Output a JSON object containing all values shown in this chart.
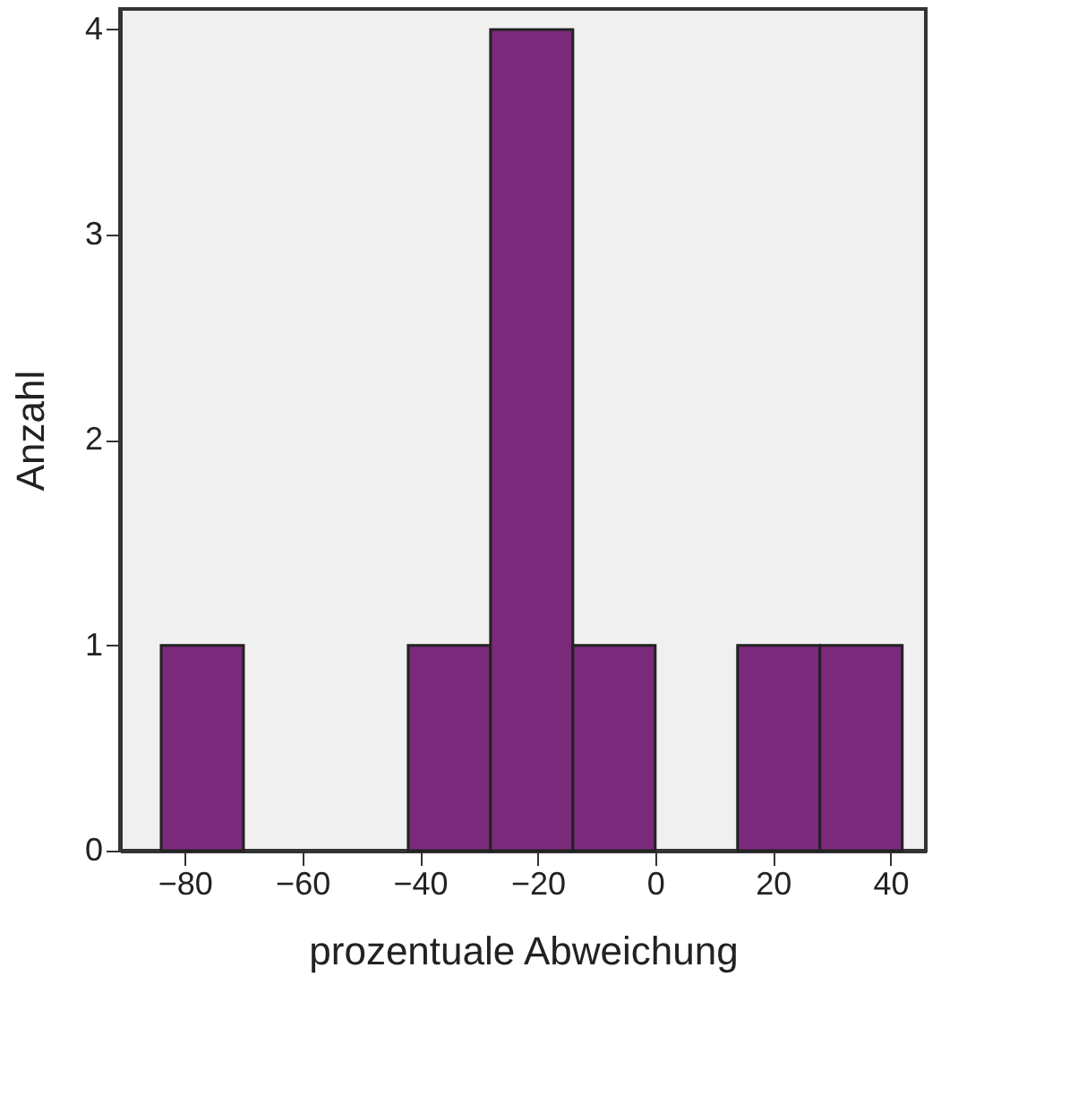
{
  "chart_data": {
    "type": "histogram",
    "xlabel": "prozentuale Abweichung",
    "ylabel": "Anzahl",
    "bins": [
      -84,
      -70,
      -56,
      -42,
      -28,
      -14,
      0,
      14,
      28,
      42
    ],
    "values": [
      1,
      0,
      0,
      1,
      4,
      1,
      0,
      1,
      1
    ],
    "color": "#7b2a7b",
    "xlim": [
      -91,
      46
    ],
    "xticks": [
      -80,
      -60,
      -40,
      -20,
      0,
      20,
      40
    ],
    "ylim": [
      0,
      4.1
    ],
    "yticks": [
      0,
      1,
      2,
      3,
      4
    ],
    "grid": false
  }
}
